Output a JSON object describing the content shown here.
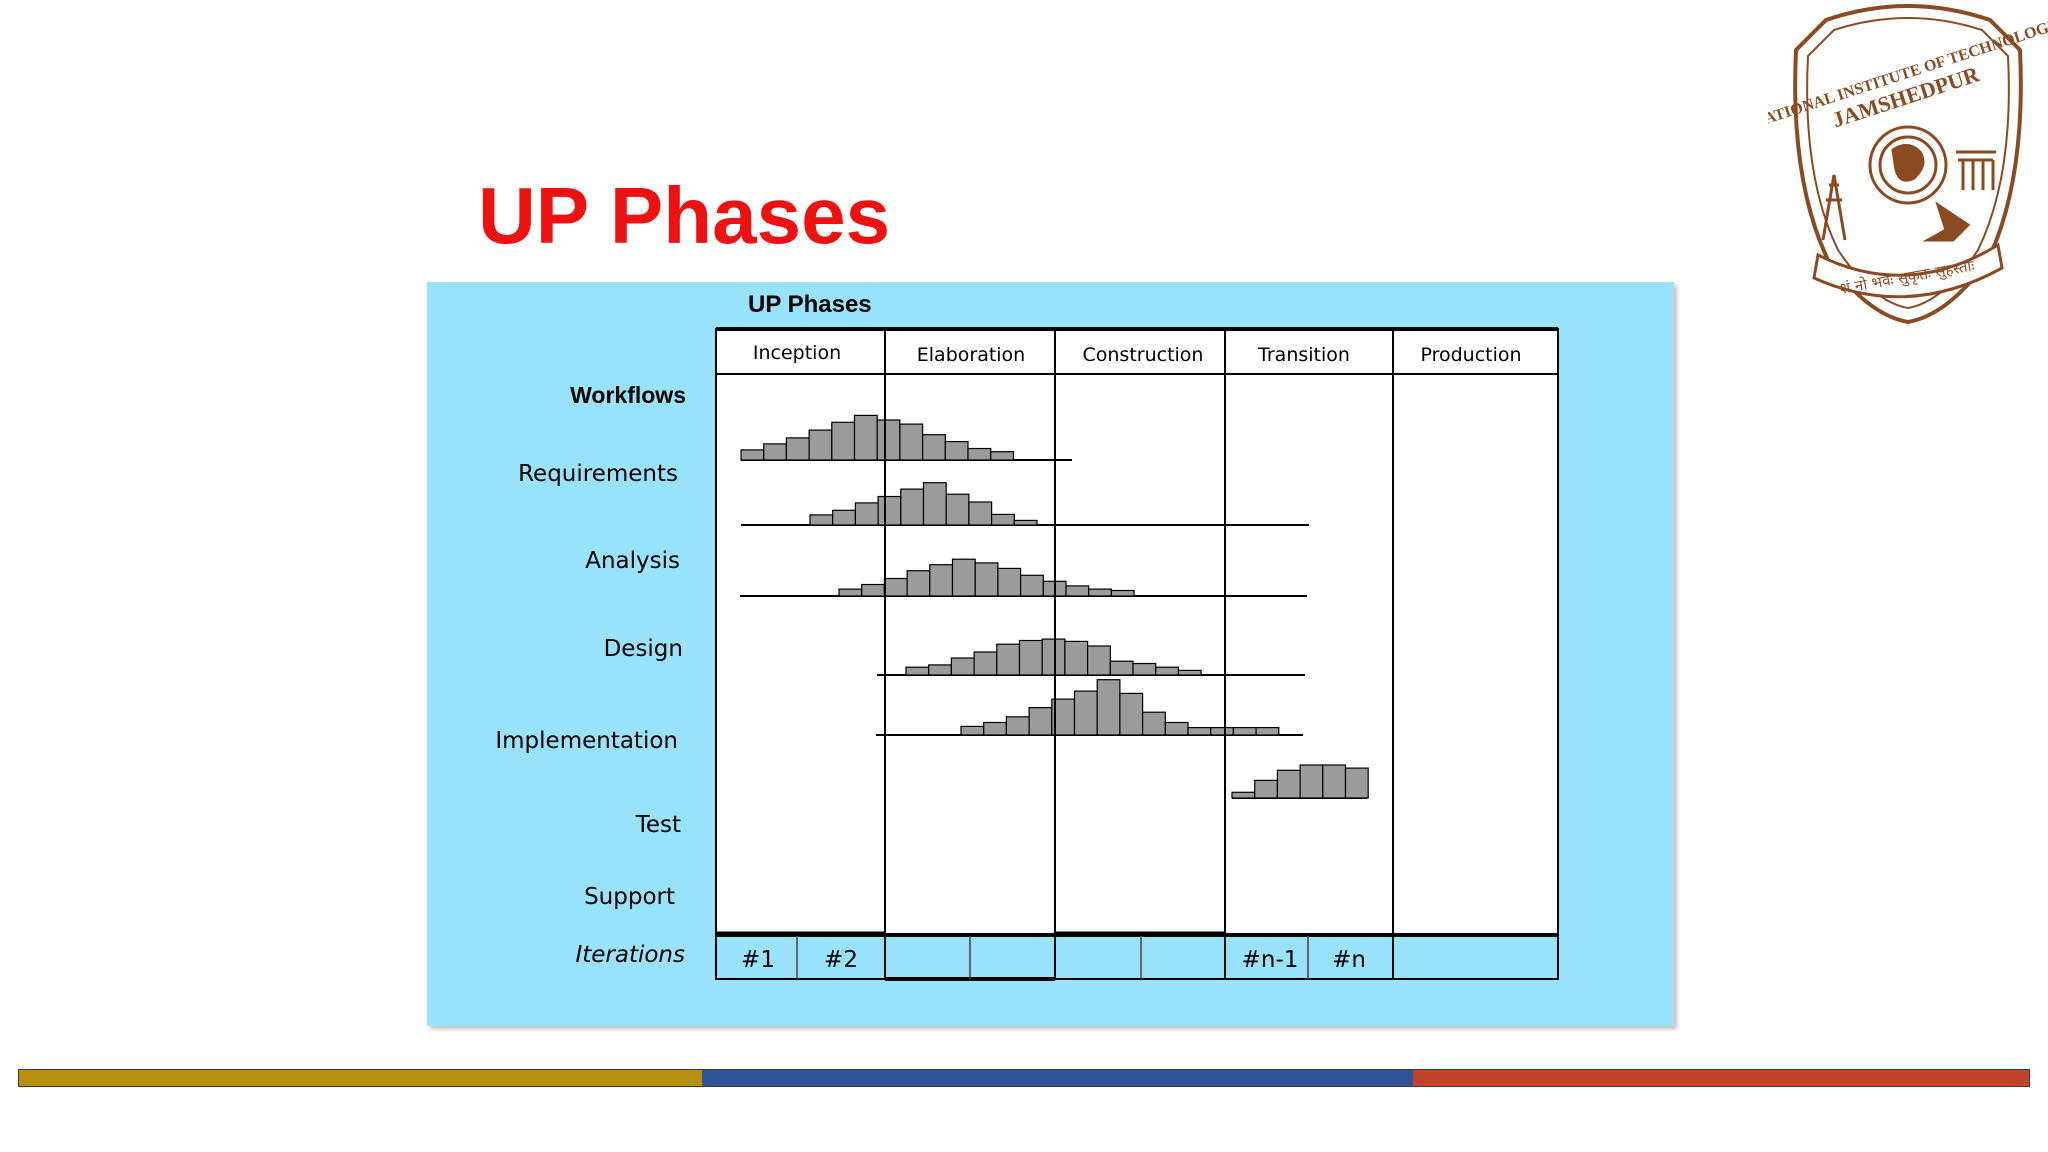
{
  "slide": {
    "title": "UP Phases"
  },
  "logo": {
    "ring_text": "NATIONAL INSTITUTE OF TECHNOLOGY",
    "city_text": "JAMSHEDPUR",
    "motto_text": "शं नो भवः सुकृतः सुहस्ताः",
    "color": "#8a4a22"
  },
  "diagram": {
    "title": "UP Phases",
    "workflows_heading": "Workflows",
    "phases": [
      "Inception",
      "Elaboration",
      "Construction",
      "Transition",
      "Production"
    ],
    "workflows": [
      {
        "label": "Requirements",
        "italic": false
      },
      {
        "label": "Analysis",
        "italic": false
      },
      {
        "label": "Design",
        "italic": false
      },
      {
        "label": "Implementation",
        "italic": false
      },
      {
        "label": "Test",
        "italic": false
      },
      {
        "label": "Support",
        "italic": false
      }
    ],
    "iterations_label": "Iterations",
    "iterations": [
      "#1",
      "#2",
      "",
      "",
      "",
      "",
      "#n-1",
      "#n",
      ""
    ],
    "workflow_effort": {
      "Requirements": [
        0.22,
        0.35,
        0.48,
        0.65,
        0.82,
        0.97,
        0.87,
        0.78,
        0.55,
        0.4,
        0.25,
        0.18
      ],
      "Analysis": [
        0.22,
        0.32,
        0.48,
        0.62,
        0.78,
        0.92,
        0.67,
        0.5,
        0.23,
        0.1
      ],
      "Design": [
        0.15,
        0.25,
        0.38,
        0.55,
        0.68,
        0.8,
        0.72,
        0.6,
        0.45,
        0.32,
        0.22,
        0.15,
        0.12
      ],
      "Implementation": [
        0.17,
        0.22,
        0.37,
        0.5,
        0.67,
        0.75,
        0.78,
        0.73,
        0.63,
        0.3,
        0.25,
        0.17,
        0.1
      ],
      "Test": [
        0.15,
        0.22,
        0.32,
        0.48,
        0.63,
        0.77,
        0.97,
        0.73,
        0.4,
        0.22,
        0.13,
        0.13,
        0.13,
        0.13
      ],
      "Support": [
        0.13,
        0.4,
        0.63,
        0.75,
        0.75,
        0.68
      ]
    },
    "colors": {
      "background": "#99e2fb",
      "panel": "#ffffff",
      "bar_fill": "#9b9b9b",
      "line": "#000000"
    }
  },
  "footer": {
    "segments": [
      {
        "color": "#b8900f"
      },
      {
        "color": "#2f5597"
      },
      {
        "color": "#c0432a"
      }
    ]
  }
}
